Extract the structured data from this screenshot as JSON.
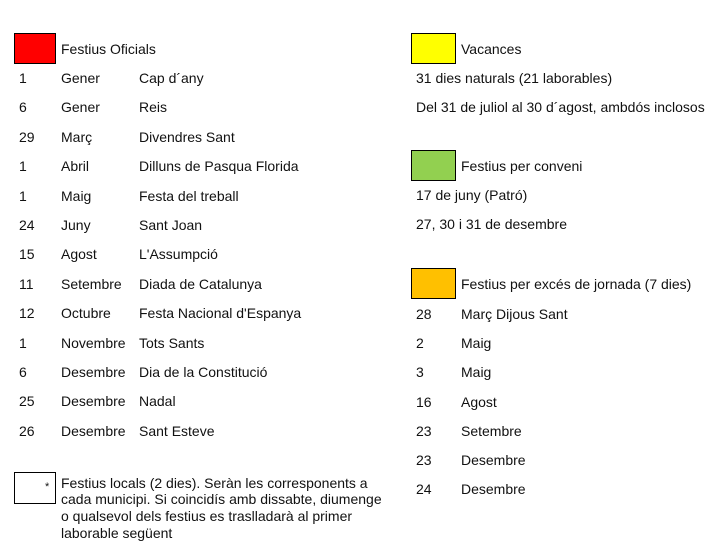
{
  "oficials": {
    "title": "Festius Oficials",
    "color": "#ff0000",
    "rows": [
      [
        "1",
        "Gener",
        "Cap d´any"
      ],
      [
        "6",
        "Gener",
        "Reis"
      ],
      [
        "29",
        "Març",
        "Divendres Sant"
      ],
      [
        "1",
        "Abril",
        "Dilluns de Pasqua Florida"
      ],
      [
        "1",
        "Maig",
        "Festa del treball"
      ],
      [
        "24",
        "Juny",
        "Sant Joan"
      ],
      [
        "15",
        "Agost",
        "L'Assumpció"
      ],
      [
        "11",
        "Setembre",
        "Diada de Catalunya"
      ],
      [
        "12",
        "Octubre",
        "Festa Nacional d'Espanya"
      ],
      [
        "1",
        "Novembre",
        "Tots Sants"
      ],
      [
        "6",
        "Desembre",
        "Dia de la Constitució"
      ],
      [
        "25",
        "Desembre",
        "Nadal"
      ],
      [
        "26",
        "Desembre",
        "Sant Esteve"
      ]
    ]
  },
  "vacances": {
    "title": "Vacances",
    "color": "#ffff00",
    "lines": [
      "31 dies naturals (21 laborables)",
      "Del 31 de juliol al 30 d´agost, ambdós inclosos"
    ]
  },
  "conveni": {
    "title": "Festius per conveni",
    "color": "#92d050",
    "lines": [
      "17 de juny (Patró)",
      "27, 30 i 31 de desembre"
    ]
  },
  "exces": {
    "title": "Festius per excés de jornada (7 dies)",
    "color": "#ffc000",
    "rows": [
      [
        "28",
        "Març  Dijous Sant"
      ],
      [
        "2",
        "Maig"
      ],
      [
        "3",
        "Maig"
      ],
      [
        "16",
        "Agost"
      ],
      [
        "23",
        "Setembre"
      ],
      [
        "23",
        "Desembre"
      ],
      [
        "24",
        "Desembre"
      ]
    ]
  },
  "locals": {
    "marker": "*",
    "lines": [
      "Festius locals (2 dies). Seràn les corresponents a",
      "cada municipi. Si coincidís amb dissabte, diumenge",
      "o qualsevol dels festius es traslladarà al primer",
      "laborable següent"
    ]
  }
}
